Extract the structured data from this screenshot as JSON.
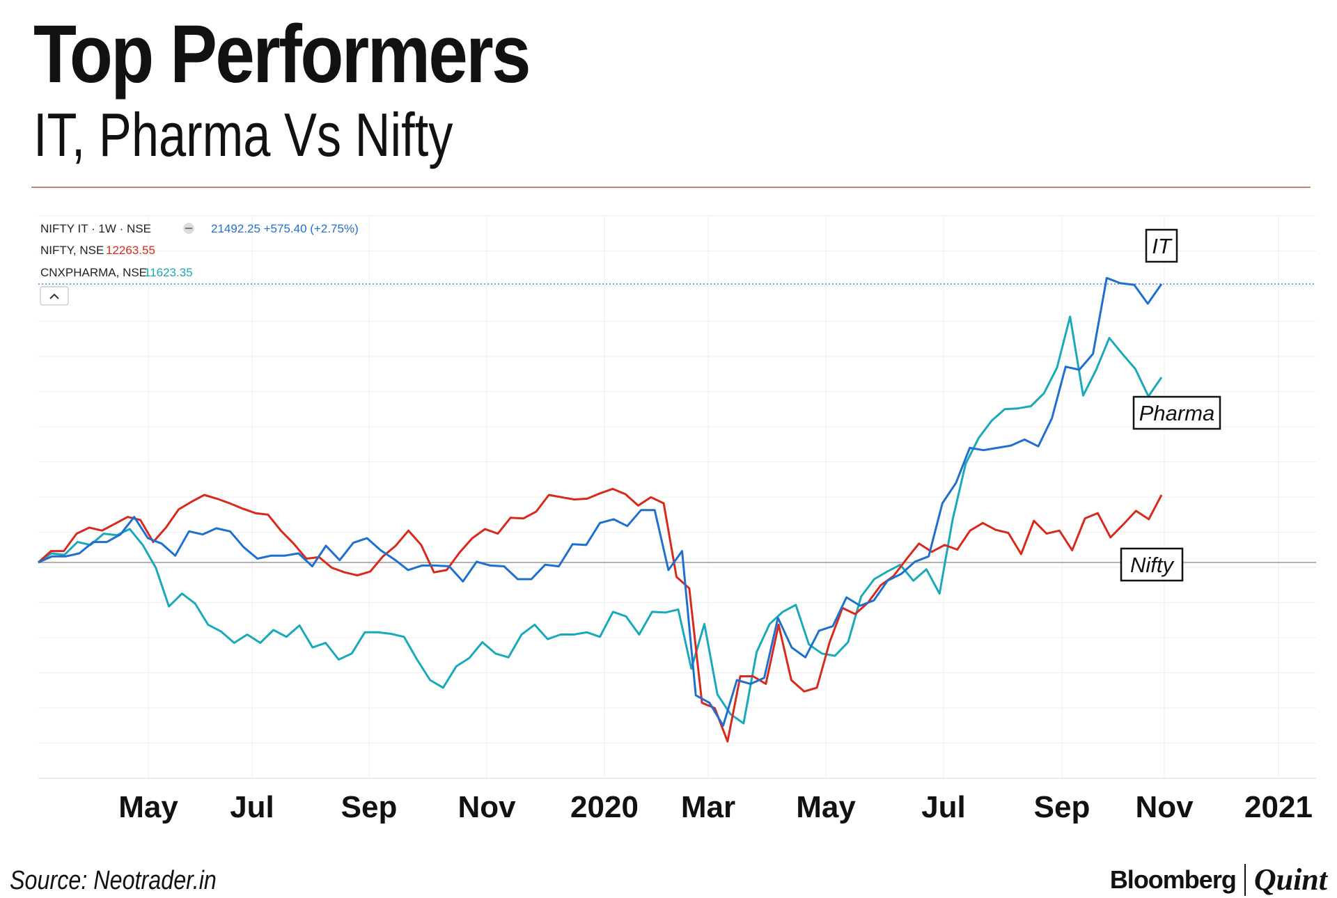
{
  "title": "Top Performers",
  "subtitle": "IT, Pharma Vs Nifty",
  "source": "Source: Neotrader.in",
  "brand": {
    "left": "Bloomberg",
    "right": "Quint"
  },
  "chart_data": {
    "type": "line",
    "title": "Top Performers",
    "subtitle": "IT, Pharma Vs Nifty",
    "xlabel": "",
    "ylabel": "",
    "x_ticks": [
      "May",
      "Jul",
      "Sep",
      "Nov",
      "2020",
      "Mar",
      "May",
      "Jul",
      "Sep",
      "Nov",
      "2021"
    ],
    "y_range": [
      -30,
      40
    ],
    "grid": true,
    "legend_position": "top-left",
    "legend": [
      {
        "label": "NIFTY IT · 1W · NSE",
        "value": "21492.25 +575.40 (+2.75%)",
        "color": "#1f6fd1"
      },
      {
        "label": "NIFTY, NSE",
        "value": "12263.55",
        "color": "#d9291c"
      },
      {
        "label": "CNXPHARMA, NSE",
        "value": "11623.35",
        "color": "#19a9bb"
      }
    ],
    "series": [
      {
        "name": "IT",
        "color": "#1f6fd1",
        "values": [
          0.0,
          0.8,
          0.8,
          1.2,
          2.7,
          2.7,
          3.7,
          6.0,
          3.2,
          2.5,
          0.9,
          4.1,
          3.7,
          4.5,
          4.1,
          2.0,
          0.5,
          0.9,
          0.9,
          1.2,
          -0.5,
          2.2,
          0.3,
          2.6,
          3.2,
          1.6,
          0.4,
          -1.0,
          -0.4,
          -0.4,
          -0.5,
          -2.5,
          0.1,
          -0.4,
          -0.5,
          -2.2,
          -2.2,
          -0.3,
          -0.5,
          2.4,
          2.3,
          5.2,
          5.7,
          4.8,
          6.9,
          6.9,
          -1.0,
          1.5,
          -17.5,
          -18.5,
          -21.5,
          -15.5,
          -16.0,
          -15.2,
          -7.3,
          -11.2,
          -12.5,
          -9.0,
          -8.4,
          -4.6,
          -5.7,
          -5.0,
          -2.4,
          -1.5,
          0.1,
          0.8,
          7.8,
          10.5,
          15.1,
          14.8,
          15.1,
          15.4,
          16.2,
          15.3,
          19.0,
          25.8,
          25.4,
          27.5,
          37.5,
          36.8,
          36.6,
          34.1,
          36.7
        ]
      },
      {
        "name": "Pharma",
        "color": "#19a9bb",
        "values": [
          0.0,
          1.2,
          1.0,
          2.7,
          2.3,
          3.8,
          3.6,
          4.4,
          2.3,
          -0.7,
          -5.8,
          -4.1,
          -5.4,
          -8.2,
          -9.1,
          -10.6,
          -9.5,
          -10.6,
          -8.9,
          -9.8,
          -8.3,
          -11.2,
          -10.6,
          -12.8,
          -12.0,
          -9.2,
          -9.2,
          -9.4,
          -9.8,
          -12.8,
          -15.5,
          -16.5,
          -13.7,
          -12.6,
          -10.5,
          -12.0,
          -12.5,
          -9.5,
          -8.2,
          -10.1,
          -9.5,
          -9.5,
          -9.2,
          -9.8,
          -6.5,
          -7.1,
          -9.5,
          -6.5,
          -6.6,
          -6.2,
          -14.0,
          -8.1,
          -17.4,
          -20.0,
          -21.2,
          -11.8,
          -8.1,
          -6.5,
          -5.6,
          -10.8,
          -12.0,
          -12.3,
          -10.5,
          -4.5,
          -2.2,
          -1.2,
          -0.3,
          -2.4,
          -0.9,
          -4.1,
          5.6,
          13.0,
          16.4,
          18.7,
          20.2,
          20.3,
          20.6,
          22.3,
          25.7,
          32.4,
          22.0,
          25.4,
          29.6,
          27.5,
          25.5,
          21.9,
          24.4
        ]
      },
      {
        "name": "Nifty",
        "color": "#d9291c",
        "values": [
          0.0,
          1.5,
          1.5,
          3.8,
          4.6,
          4.2,
          5.1,
          6.0,
          5.6,
          2.7,
          4.6,
          7.0,
          8.0,
          8.9,
          8.4,
          7.8,
          7.1,
          6.5,
          6.3,
          4.2,
          2.5,
          0.5,
          0.7,
          -0.7,
          -1.3,
          -1.7,
          -1.2,
          0.8,
          2.2,
          4.2,
          2.3,
          -1.3,
          -1.0,
          1.3,
          3.2,
          4.4,
          3.8,
          5.9,
          5.8,
          6.7,
          8.9,
          8.6,
          8.3,
          8.4,
          9.1,
          9.7,
          9.0,
          7.5,
          8.6,
          7.8,
          -1.9,
          -3.4,
          -18.5,
          -19.2,
          -23.6,
          -15.0,
          -15.0,
          -16.0,
          -8.2,
          -15.5,
          -17.0,
          -16.5,
          -10.5,
          -6.0,
          -6.8,
          -5.3,
          -3.0,
          -1.8,
          0.4,
          2.5,
          1.4,
          2.3,
          1.7,
          4.2,
          5.2,
          4.3,
          3.9,
          1.1,
          5.5,
          3.8,
          4.2,
          1.6,
          5.8,
          6.5,
          3.3,
          5.0,
          6.8,
          5.7,
          8.9
        ]
      }
    ],
    "series_tags": [
      "IT",
      "Pharma",
      "Nifty"
    ]
  }
}
